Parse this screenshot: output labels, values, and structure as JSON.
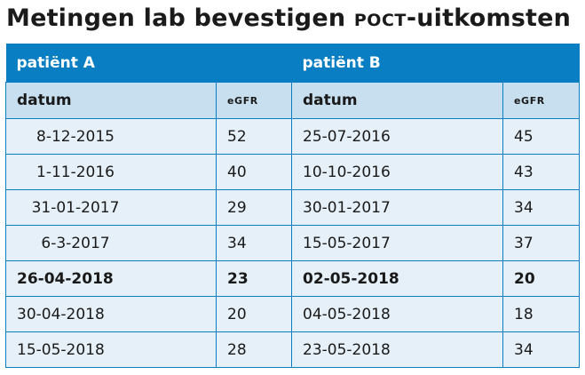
{
  "title": {
    "main": "Metingen lab bevestigen ",
    "abbr": "POCT",
    "suffix": "-uitkomsten"
  },
  "patients": {
    "a": "patiënt A",
    "b": "patiënt B"
  },
  "columns": {
    "datum": "datum",
    "egfr": "eGFR"
  },
  "rows": [
    {
      "date_a": "8-12-2015",
      "egfr_a": "52",
      "date_b": "25-07-2016",
      "egfr_b": "45",
      "bold": false
    },
    {
      "date_a": "1-11-2016",
      "egfr_a": "40",
      "date_b": "10-10-2016",
      "egfr_b": "43",
      "bold": false
    },
    {
      "date_a": "31-01-2017",
      "egfr_a": "29",
      "date_b": "30-01-2017",
      "egfr_b": "34",
      "bold": false
    },
    {
      "date_a": "6-3-2017",
      "egfr_a": "34",
      "date_b": "15-05-2017",
      "egfr_b": "37",
      "bold": false
    },
    {
      "date_a": "26-04-2018",
      "egfr_a": "23",
      "date_b": "02-05-2018",
      "egfr_b": "20",
      "bold": true
    },
    {
      "date_a": "30-04-2018",
      "egfr_a": "20",
      "date_b": "04-05-2018",
      "egfr_b": "18",
      "bold": false
    },
    {
      "date_a": "15-05-2018",
      "egfr_a": "28",
      "date_b": "23-05-2018",
      "egfr_b": "34",
      "bold": false
    }
  ]
}
